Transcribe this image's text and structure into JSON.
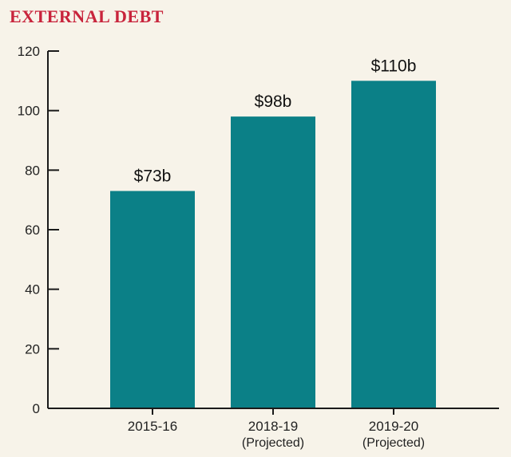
{
  "chart_data": {
    "type": "bar",
    "title": "EXTERNAL DEBT",
    "categories": [
      "2015-16",
      "2018-19",
      "2019-20"
    ],
    "category_sublabels": [
      "",
      "(Projected)",
      "(Projected)"
    ],
    "values": [
      73,
      98,
      110
    ],
    "data_labels": [
      "$73b",
      "$98b",
      "$110b"
    ],
    "yticks": [
      0,
      20,
      40,
      60,
      80,
      100,
      120
    ],
    "ylim": [
      0,
      120
    ],
    "xlabel": "",
    "ylabel": "",
    "grid": false,
    "legend": "none"
  },
  "colors": {
    "title": "#c8243c",
    "bar": "#0b8087",
    "axis": "#1a1a1a",
    "background": "#f7f3e9"
  }
}
